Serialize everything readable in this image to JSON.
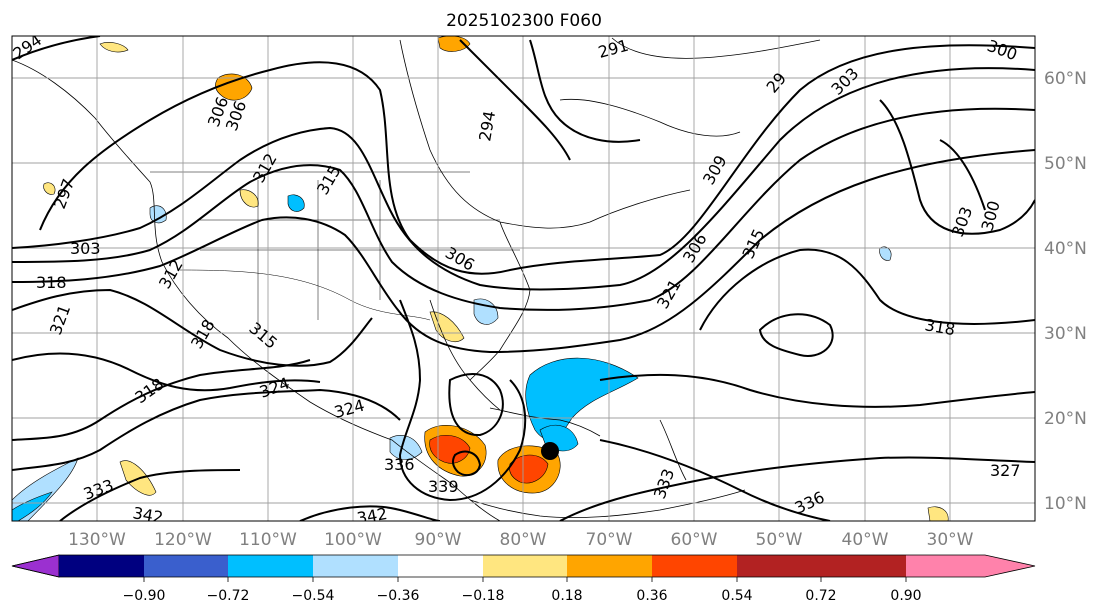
{
  "title": "2025102300 F060",
  "lon_labels": [
    "130°W",
    "120°W",
    "110°W",
    "100°W",
    "90°W",
    "80°W",
    "70°W",
    "60°W",
    "50°W",
    "40°W",
    "30°W"
  ],
  "lat_labels": [
    "60°N",
    "50°N",
    "40°N",
    "30°N",
    "20°N",
    "10°N"
  ],
  "colorbar": {
    "ticks": [
      "−0.90",
      "−0.72",
      "−0.54",
      "−0.36",
      "−0.18",
      "0.18",
      "0.36",
      "0.54",
      "0.72",
      "0.90"
    ],
    "colors": [
      "#9b30d0",
      "#000080",
      "#3a5fcd",
      "#00bfff",
      "#b0e0ff",
      "#ffffff",
      "#ffe680",
      "#ffa500",
      "#ff4500",
      "#b22222",
      "#ff82ab"
    ]
  },
  "contour_labels": [
    {
      "text": "294"
    },
    {
      "text": "297"
    },
    {
      "text": "303"
    },
    {
      "text": "318"
    },
    {
      "text": "321"
    },
    {
      "text": "312"
    },
    {
      "text": "306"
    },
    {
      "text": "306"
    },
    {
      "text": "312"
    },
    {
      "text": "315"
    },
    {
      "text": "318"
    },
    {
      "text": "315"
    },
    {
      "text": "318"
    },
    {
      "text": "324"
    },
    {
      "text": "324"
    },
    {
      "text": "333"
    },
    {
      "text": "342"
    },
    {
      "text": "336"
    },
    {
      "text": "339"
    },
    {
      "text": "342"
    },
    {
      "text": "294"
    },
    {
      "text": "291"
    },
    {
      "text": "306"
    },
    {
      "text": "309"
    },
    {
      "text": "306"
    },
    {
      "text": "315"
    },
    {
      "text": "321"
    },
    {
      "text": "333"
    },
    {
      "text": "336"
    },
    {
      "text": "29"
    },
    {
      "text": "303"
    },
    {
      "text": "300"
    },
    {
      "text": "303"
    },
    {
      "text": "300"
    },
    {
      "text": "318"
    },
    {
      "text": "327"
    }
  ]
}
